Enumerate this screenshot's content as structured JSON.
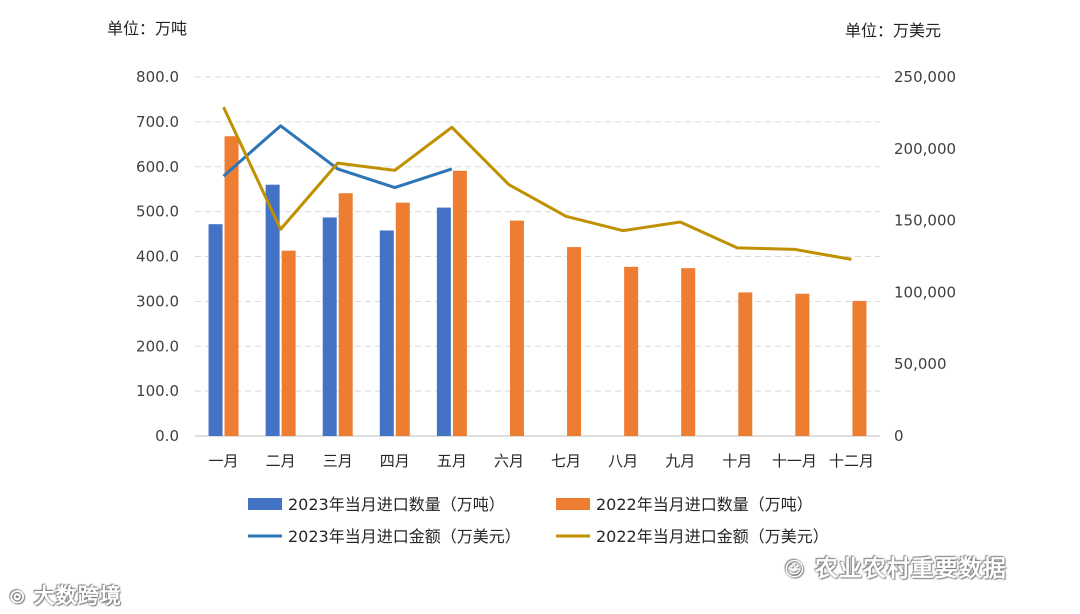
{
  "units": {
    "left": "单位：万吨",
    "right": "单位：万美元"
  },
  "watermarks": {
    "left": "大数跨境",
    "right": "农业农村重要数据"
  },
  "chart_data": {
    "type": "bar",
    "categories": [
      "一月",
      "二月",
      "三月",
      "四月",
      "五月",
      "六月",
      "七月",
      "八月",
      "九月",
      "十月",
      "十一月",
      "十二月"
    ],
    "ylim_left": [
      0,
      800
    ],
    "yticks_left": [
      "0.0",
      "100.0",
      "200.0",
      "300.0",
      "400.0",
      "500.0",
      "600.0",
      "700.0",
      "800.0"
    ],
    "ylim_right": [
      0,
      250000
    ],
    "yticks_right": [
      "0",
      "50,000",
      "100,000",
      "150,000",
      "200,000",
      "250,000"
    ],
    "grid": true,
    "legend_position": "bottom",
    "series": [
      {
        "name": "2023年当月进口数量（万吨）",
        "kind": "bar",
        "axis": "left",
        "color": "#4472C4",
        "values": [
          472,
          560,
          487,
          458,
          509,
          null,
          null,
          null,
          null,
          null,
          null,
          null
        ]
      },
      {
        "name": "2022年当月进口数量（万吨）",
        "kind": "bar",
        "axis": "left",
        "color": "#ED7D31",
        "values": [
          668,
          413,
          541,
          520,
          591,
          480,
          421,
          377,
          374,
          320,
          317,
          301
        ]
      },
      {
        "name": "2023年当月进口金额（万美元）",
        "kind": "line",
        "axis": "right",
        "color": "#2E75B6",
        "values": [
          181000,
          216000,
          186000,
          173000,
          186000,
          null,
          null,
          null,
          null,
          null,
          null,
          null
        ]
      },
      {
        "name": "2022年当月进口金额（万美元）",
        "kind": "line",
        "axis": "right",
        "color": "#BF9000",
        "values": [
          229000,
          144000,
          190000,
          185000,
          215000,
          175000,
          153000,
          143000,
          149000,
          131000,
          130000,
          123000
        ]
      }
    ]
  }
}
